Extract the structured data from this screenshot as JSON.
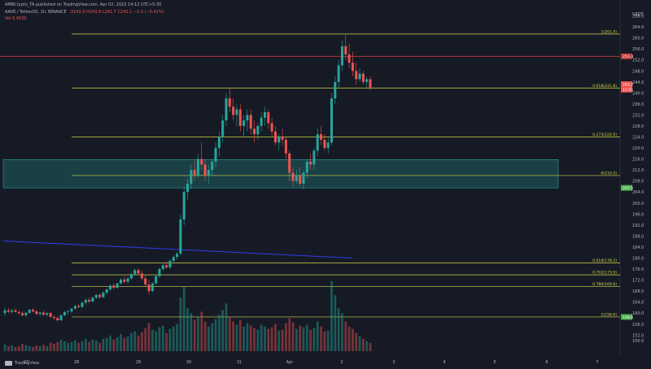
{
  "header": {
    "published_by": "AMBCrypto_TA published on TradingView.com, Apr 02, 2022 14:12 UTC+5:30",
    "symbol": "AAVE / TetherUS, 1h, BINANCE",
    "ohlc": "O242.0 H243.8 L241.7 C242.1 −1.0 (−0.41%)",
    "volume": "Vol 6.4536"
  },
  "footer": {
    "brand": "TradingView"
  },
  "colors": {
    "background": "#161a25",
    "up": "#26a69a",
    "down": "#ef5350",
    "fib": "#d6d84a",
    "zone": "#26a69a",
    "trendline": "#2f3ee8",
    "resistance": "#c53a3a",
    "axis_text": "#b2b5be"
  },
  "chart_data": {
    "type": "candlestick",
    "y_axis_unit": "USDT",
    "ylim": [
      145,
      272
    ],
    "y_ticks": [
      150,
      152,
      156,
      160,
      164,
      168,
      172,
      176,
      180,
      184,
      188,
      192,
      196,
      200,
      204,
      208,
      212,
      216,
      220,
      224,
      228,
      232,
      236,
      240,
      244,
      248,
      252,
      256,
      260,
      264,
      268
    ],
    "x_ticks": [
      "27",
      "28",
      "29",
      "30",
      "31",
      "Apr",
      "2",
      "3",
      "4",
      "5",
      "6",
      "7"
    ],
    "candles": [
      [
        160,
        162,
        159,
        161
      ],
      [
        161,
        162,
        160,
        160.5
      ],
      [
        160.5,
        161.5,
        159.8,
        161
      ],
      [
        161,
        161.8,
        160.2,
        160.4
      ],
      [
        160.4,
        161,
        159.5,
        160
      ],
      [
        160,
        160.6,
        158.8,
        159.2
      ],
      [
        159.2,
        160.5,
        158.6,
        160.1
      ],
      [
        160.1,
        161.6,
        159.8,
        161.2
      ],
      [
        161.2,
        161.8,
        160.3,
        160.6
      ],
      [
        160.6,
        161.2,
        159.3,
        159.7
      ],
      [
        159.7,
        160.4,
        158.9,
        160.2
      ],
      [
        160.2,
        160.9,
        159.1,
        159.4
      ],
      [
        159.4,
        160.3,
        158.7,
        160
      ],
      [
        160,
        160.4,
        158.2,
        158.6
      ],
      [
        158.6,
        159.4,
        157.6,
        158.2
      ],
      [
        158.2,
        158.8,
        156.9,
        157.4
      ],
      [
        157.4,
        159.6,
        157,
        159.2
      ],
      [
        159.2,
        160.8,
        158.8,
        160.4
      ],
      [
        160.4,
        161.2,
        159.4,
        160.6
      ],
      [
        160.6,
        162,
        160,
        161.6
      ],
      [
        161.6,
        163,
        161.2,
        162.6
      ],
      [
        162.6,
        163.4,
        161.8,
        162.2
      ],
      [
        162.2,
        164.2,
        161.8,
        163.8
      ],
      [
        163.8,
        165.4,
        163,
        164.8
      ],
      [
        164.8,
        165.6,
        163.6,
        164.2
      ],
      [
        164.2,
        166.2,
        163.8,
        165.6
      ],
      [
        165.6,
        167,
        165,
        166.6
      ],
      [
        166.6,
        167.2,
        165.2,
        165.8
      ],
      [
        165.8,
        168,
        165.4,
        167.4
      ],
      [
        167.4,
        169,
        166.8,
        168.6
      ],
      [
        168.6,
        170.4,
        168,
        170
      ],
      [
        170,
        170.8,
        168.6,
        169.2
      ],
      [
        169.2,
        171.2,
        168.8,
        170.8
      ],
      [
        170.8,
        172.8,
        170.4,
        172.2
      ],
      [
        172.2,
        173.4,
        170.8,
        171.4
      ],
      [
        171.4,
        173.2,
        170.6,
        172.6
      ],
      [
        172.6,
        174.6,
        172,
        174.2
      ],
      [
        174.2,
        176.2,
        173.6,
        175.6
      ],
      [
        175.6,
        176.4,
        173.8,
        174.4
      ],
      [
        174.4,
        175.4,
        171.8,
        172.6
      ],
      [
        172.6,
        173.6,
        169.6,
        170.4
      ],
      [
        170.4,
        172,
        166.6,
        168
      ],
      [
        168,
        171.4,
        167.6,
        170.8
      ],
      [
        170.8,
        174,
        170.2,
        173.4
      ],
      [
        173.4,
        176.6,
        172.8,
        176
      ],
      [
        176,
        178.2,
        175.2,
        177.4
      ],
      [
        177.4,
        178.8,
        176,
        176.6
      ],
      [
        176.6,
        179.6,
        176,
        179
      ],
      [
        179,
        181,
        178.2,
        180.4
      ],
      [
        180.4,
        182.2,
        179.4,
        181.6
      ],
      [
        181.6,
        196,
        181,
        194
      ],
      [
        194,
        206,
        192,
        204
      ],
      [
        204,
        209,
        201,
        207
      ],
      [
        207,
        214,
        205,
        212
      ],
      [
        212,
        216,
        208,
        210
      ],
      [
        210,
        218,
        209,
        216
      ],
      [
        216,
        222,
        212,
        214
      ],
      [
        214,
        216,
        208,
        210
      ],
      [
        210,
        214,
        207,
        212
      ],
      [
        212,
        216,
        210,
        215
      ],
      [
        215,
        222,
        213,
        220
      ],
      [
        220,
        226,
        217,
        224
      ],
      [
        224,
        232,
        222,
        230
      ],
      [
        230,
        240,
        228,
        238
      ],
      [
        238,
        242,
        233,
        235
      ],
      [
        235,
        238,
        230,
        232
      ],
      [
        232,
        236,
        228,
        234
      ],
      [
        234,
        236,
        226,
        228
      ],
      [
        228,
        232,
        224,
        230
      ],
      [
        230,
        234,
        226,
        232
      ],
      [
        232,
        234,
        225,
        227
      ],
      [
        227,
        230,
        222,
        225
      ],
      [
        225,
        229,
        223,
        228
      ],
      [
        228,
        233,
        226,
        231
      ],
      [
        231,
        235,
        228,
        233
      ],
      [
        233,
        234,
        227,
        229
      ],
      [
        229,
        231,
        224,
        226
      ],
      [
        226,
        228,
        221,
        222
      ],
      [
        222,
        225,
        219,
        224
      ],
      [
        224,
        227,
        221,
        223
      ],
      [
        223,
        224,
        216,
        218
      ],
      [
        218,
        219,
        208,
        211
      ],
      [
        211,
        213,
        206,
        208
      ],
      [
        208,
        212,
        207,
        210
      ],
      [
        210,
        213,
        206,
        207
      ],
      [
        207,
        212,
        205,
        211
      ],
      [
        211,
        216,
        209,
        215
      ],
      [
        215,
        218,
        212,
        214
      ],
      [
        214,
        220,
        212,
        219
      ],
      [
        219,
        227,
        217,
        225
      ],
      [
        225,
        228,
        221,
        223
      ],
      [
        223,
        225,
        219,
        220
      ],
      [
        220,
        224,
        218,
        222
      ],
      [
        222,
        240,
        221,
        238
      ],
      [
        238,
        246,
        236,
        244
      ],
      [
        244,
        252,
        242,
        250
      ],
      [
        250,
        259,
        248,
        257
      ],
      [
        257,
        261,
        252,
        254
      ],
      [
        254,
        258,
        249,
        251
      ],
      [
        251,
        255,
        246,
        248
      ],
      [
        248,
        251,
        243,
        245
      ],
      [
        245,
        249,
        244,
        247
      ],
      [
        247,
        248,
        243,
        244
      ],
      [
        244,
        246,
        242,
        245
      ],
      [
        245,
        246,
        241,
        242
      ]
    ],
    "volumes": [
      0.8,
      0.6,
      0.7,
      0.5,
      0.6,
      0.9,
      0.7,
      0.6,
      0.5,
      0.7,
      0.6,
      0.8,
      0.6,
      1.0,
      0.9,
      1.1,
      1.4,
      1.2,
      1.0,
      1.1,
      1.3,
      1.0,
      1.2,
      1.5,
      1.1,
      1.4,
      1.3,
      1.0,
      1.5,
      1.6,
      1.9,
      1.4,
      1.7,
      2.1,
      1.6,
      1.8,
      2.2,
      2.4,
      1.9,
      2.3,
      2.8,
      3.4,
      2.6,
      2.4,
      2.9,
      3.1,
      2.2,
      2.7,
      3.0,
      3.3,
      6.5,
      7.8,
      5.2,
      4.6,
      3.8,
      4.2,
      4.8,
      3.6,
      3.0,
      3.4,
      3.9,
      4.4,
      5.0,
      5.8,
      4.2,
      3.6,
      3.2,
      3.8,
      3.0,
      3.4,
      3.1,
      2.8,
      2.6,
      3.2,
      3.0,
      2.7,
      2.9,
      3.3,
      2.5,
      2.6,
      3.4,
      4.0,
      3.5,
      2.7,
      3.1,
      2.9,
      3.2,
      2.6,
      2.8,
      3.6,
      3.0,
      2.4,
      2.5,
      8.5,
      6.8,
      5.2,
      4.6,
      3.6,
      3.0,
      2.7,
      2.2,
      1.8,
      1.5,
      1.2,
      1.0
    ],
    "fib_levels": [
      {
        "label": "1(261.4)",
        "value": 261.4
      },
      {
        "label": "0.618(241.8)",
        "value": 241.8
      },
      {
        "label": "0.273(224.0)",
        "value": 224.0
      },
      {
        "label": "0(210.0)",
        "value": 210.0
      },
      {
        "label": "0.618(178.2)",
        "value": 178.2
      },
      {
        "label": "0.702(173.9)",
        "value": 173.9
      },
      {
        "label": "0.786(169.6)",
        "value": 169.6
      },
      {
        "label": "1(158.6)",
        "value": 158.6
      }
    ],
    "support_zone": [
      205.5,
      215.8
    ],
    "resistance_line": 253.3,
    "trendline": [
      [
        186.2
      ],
      [
        180
      ]
    ],
    "price_tags": [
      {
        "text": "253.3",
        "value": 253.3,
        "color": "#c53a3a"
      },
      {
        "text": "243.2",
        "value": 243.2,
        "color": "#ef5350"
      },
      {
        "text": "11:51",
        "value": 241.2,
        "color": "#ef5350"
      },
      {
        "text": "205.5",
        "value": 205.5,
        "color": "#4caf50"
      },
      {
        "text": "158.6",
        "value": 158.6,
        "color": "#4caf50"
      }
    ]
  }
}
